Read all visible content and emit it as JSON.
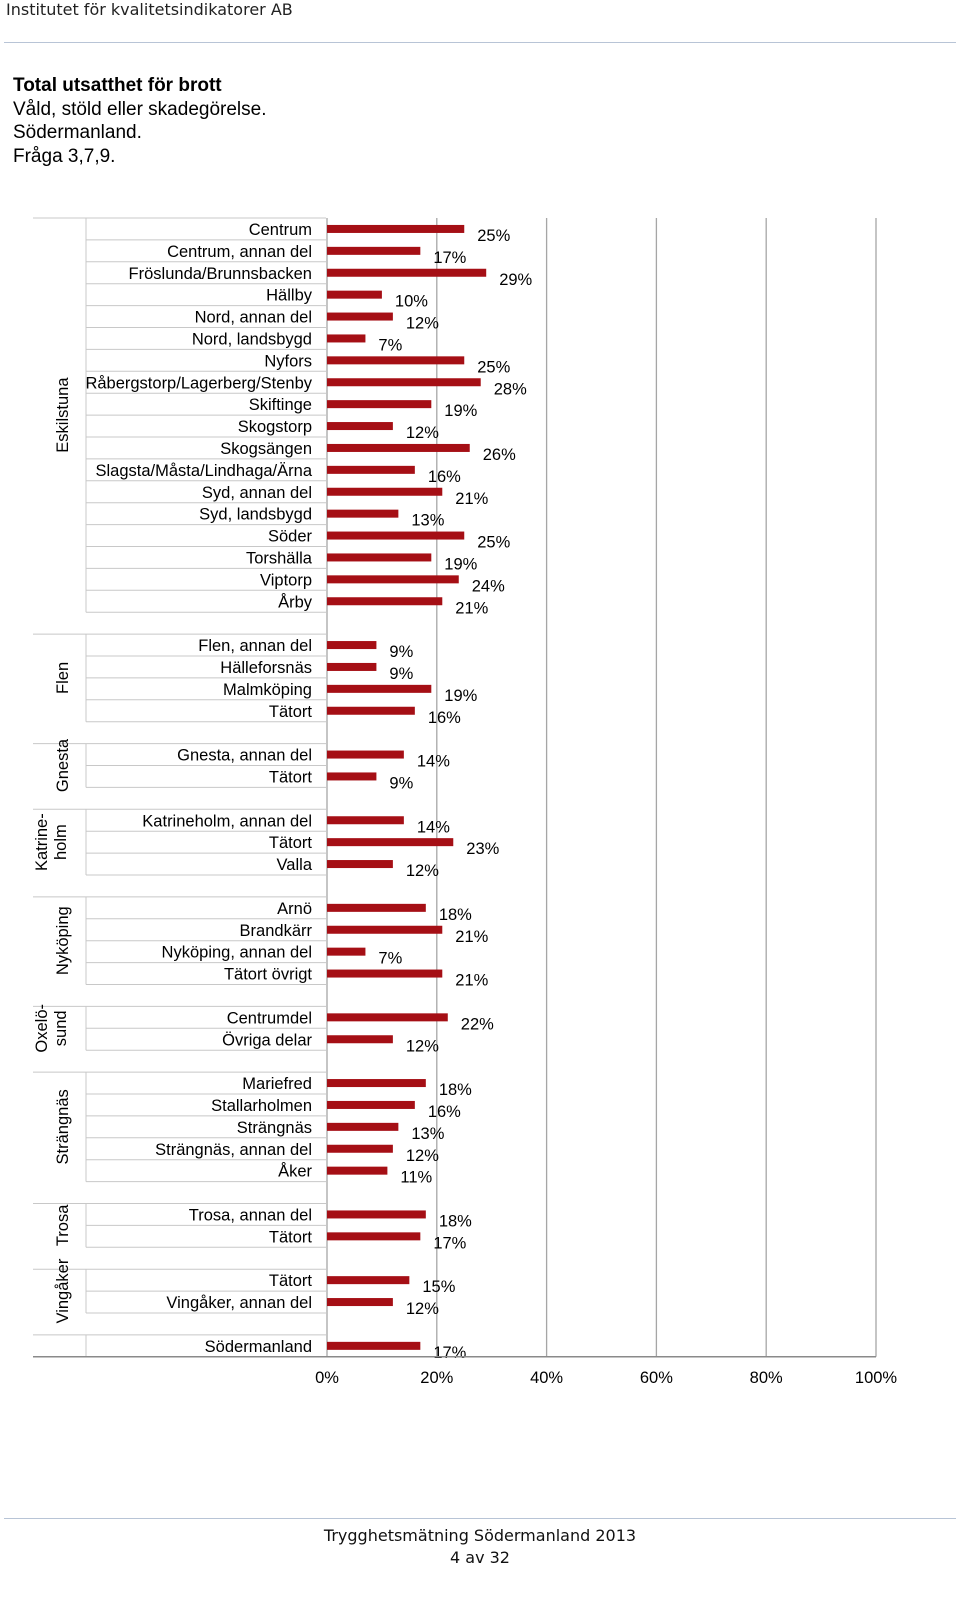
{
  "header": {
    "organization": "Institutet för kvalitetsindikatorer AB"
  },
  "title": {
    "line1": "Total utsatthet för brott",
    "line2": "Våld, stöld eller skadegörelse.",
    "line3": "Södermanland.",
    "line4": "Fråga 3,7,9."
  },
  "footer": {
    "report": "Trygghetsmätning Södermanland 2013",
    "page": "4 av 32"
  },
  "colors": {
    "bar": "#a50f15",
    "grid": "#a6a6a6"
  },
  "chart_data": {
    "type": "bar",
    "orientation": "horizontal",
    "xlim": [
      0,
      100
    ],
    "x_ticks": [
      "0%",
      "20%",
      "40%",
      "60%",
      "80%",
      "100%"
    ],
    "x_tick_values": [
      0,
      20,
      40,
      60,
      80,
      100
    ],
    "groups": [
      {
        "name": "Eskilstuna",
        "items": [
          {
            "label": "Centrum",
            "value": 25
          },
          {
            "label": "Centrum, annan del",
            "value": 17
          },
          {
            "label": "Fröslunda/Brunnsbacken",
            "value": 29
          },
          {
            "label": "Hällby",
            "value": 10
          },
          {
            "label": "Nord, annan del",
            "value": 12
          },
          {
            "label": "Nord, landsbygd",
            "value": 7
          },
          {
            "label": "Nyfors",
            "value": 25
          },
          {
            "label": "Råbergstorp/Lagerberg/Stenby",
            "value": 28
          },
          {
            "label": "Skiftinge",
            "value": 19
          },
          {
            "label": "Skogstorp",
            "value": 12
          },
          {
            "label": "Skogsängen",
            "value": 26
          },
          {
            "label": "Slagsta/Måsta/Lindhaga/Ärna",
            "value": 16
          },
          {
            "label": "Syd, annan del",
            "value": 21
          },
          {
            "label": "Syd, landsbygd",
            "value": 13
          },
          {
            "label": "Söder",
            "value": 25
          },
          {
            "label": "Torshälla",
            "value": 19
          },
          {
            "label": "Viptorp",
            "value": 24
          },
          {
            "label": "Årby",
            "value": 21
          }
        ]
      },
      {
        "name": "Flen",
        "items": [
          {
            "label": "Flen, annan del",
            "value": 9
          },
          {
            "label": "Hälleforsnäs",
            "value": 9
          },
          {
            "label": "Malmköping",
            "value": 19
          },
          {
            "label": "Tätort",
            "value": 16
          }
        ]
      },
      {
        "name": "Gnesta",
        "items": [
          {
            "label": "Gnesta, annan del",
            "value": 14
          },
          {
            "label": "Tätort",
            "value": 9
          }
        ]
      },
      {
        "name": "Katrine-|holm",
        "items": [
          {
            "label": "Katrineholm, annan del",
            "value": 14
          },
          {
            "label": "Tätort",
            "value": 23
          },
          {
            "label": "Valla",
            "value": 12
          }
        ]
      },
      {
        "name": "Nyköping",
        "items": [
          {
            "label": "Arnö",
            "value": 18
          },
          {
            "label": "Brandkärr",
            "value": 21
          },
          {
            "label": "Nyköping, annan del",
            "value": 7
          },
          {
            "label": "Tätort övrigt",
            "value": 21
          }
        ]
      },
      {
        "name": "Oxelö-|sund",
        "items": [
          {
            "label": "Centrumdel",
            "value": 22
          },
          {
            "label": "Övriga delar",
            "value": 12
          }
        ]
      },
      {
        "name": "Strängnäs",
        "items": [
          {
            "label": "Mariefred",
            "value": 18
          },
          {
            "label": "Stallarholmen",
            "value": 16
          },
          {
            "label": "Strängnäs",
            "value": 13
          },
          {
            "label": "Strängnäs, annan del",
            "value": 12
          },
          {
            "label": "Åker",
            "value": 11
          }
        ]
      },
      {
        "name": "Trosa",
        "items": [
          {
            "label": "Trosa, annan del",
            "value": 18
          },
          {
            "label": "Tätort",
            "value": 17
          }
        ]
      },
      {
        "name": "Vingåker",
        "items": [
          {
            "label": "Tätort",
            "value": 15
          },
          {
            "label": "Vingåker, annan del",
            "value": 12
          }
        ]
      },
      {
        "name": "",
        "items": [
          {
            "label": "Södermanland",
            "value": 17
          }
        ]
      }
    ]
  }
}
